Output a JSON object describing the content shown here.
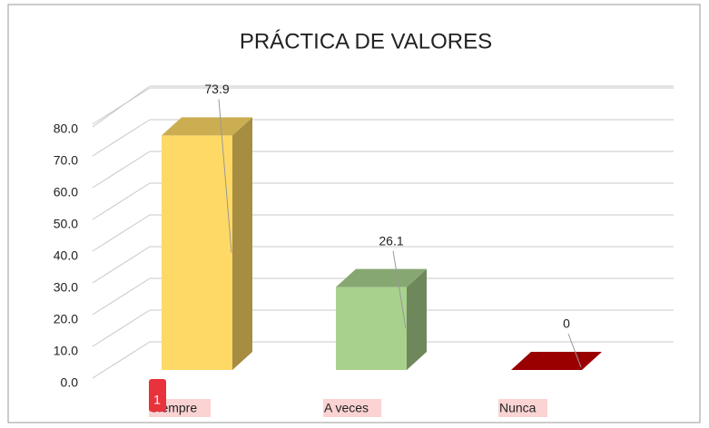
{
  "chart_data": {
    "type": "bar3d",
    "title": "PRÁCTICA DE VALORES",
    "categories": [
      "Siempre",
      "A veces",
      "Nunca"
    ],
    "values": [
      73.9,
      26.1,
      0
    ],
    "colors": [
      "#ffd966",
      "#a9d18e",
      "#c00000"
    ],
    "ylim": [
      0,
      80
    ],
    "yticks": [
      {
        "value": 0,
        "label": "0.0"
      },
      {
        "value": 10,
        "label": "10.0"
      },
      {
        "value": 20,
        "label": "20.0"
      },
      {
        "value": 30,
        "label": "30.0"
      },
      {
        "value": 40,
        "label": "40.0"
      },
      {
        "value": 50,
        "label": "50.0"
      },
      {
        "value": 60,
        "label": "60.0"
      },
      {
        "value": 70,
        "label": "70.0"
      },
      {
        "value": 80,
        "label": "80.0"
      }
    ],
    "grid": true,
    "badge": "1"
  }
}
